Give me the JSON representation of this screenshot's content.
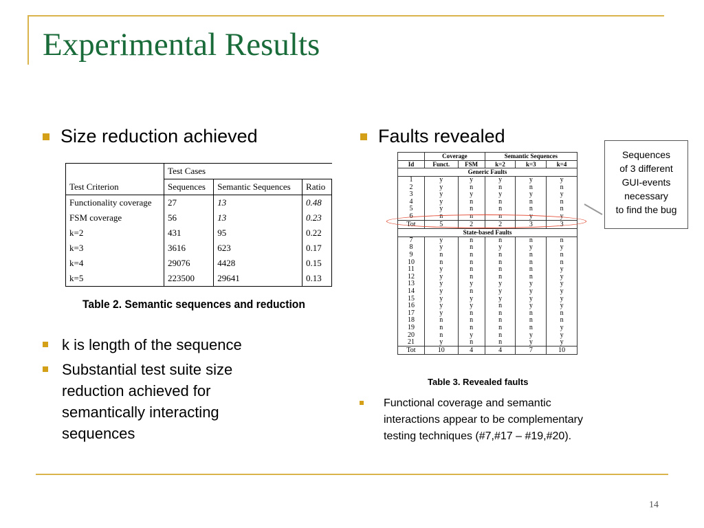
{
  "title": "Experimental Results",
  "left": {
    "heading": "Size reduction achieved",
    "table": {
      "group_header": "Test Cases",
      "columns": [
        "Test Criterion",
        "Sequences",
        "Semantic Sequences",
        "Ratio"
      ],
      "rows": [
        [
          "Functionality coverage",
          "27",
          "13",
          "0.48"
        ],
        [
          "FSM coverage",
          "56",
          "13",
          "0.23"
        ],
        [
          "k=2",
          "431",
          "95",
          "0.22"
        ],
        [
          "k=3",
          "3616",
          "623",
          "0.17"
        ],
        [
          "k=4",
          "29076",
          "4428",
          "0.15"
        ],
        [
          "k=5",
          "223500",
          "29641",
          "0.13"
        ]
      ],
      "caption": "Table 2. Semantic sequences and reduction"
    },
    "bullets": [
      "k is length of the sequence",
      "Substantial test suite size reduction achieved for semantically interacting sequences"
    ]
  },
  "right": {
    "heading": "Faults revealed",
    "table": {
      "group_coverage": "Coverage",
      "group_semantic": "Semantic Sequences",
      "columns": [
        "Id",
        "Funct.",
        "FSM",
        "k=2",
        "k=3",
        "k=4"
      ],
      "generic_label": "Generic Faults",
      "generic_rows": [
        [
          "1",
          "y",
          "y",
          "y",
          "y",
          "y"
        ],
        [
          "2",
          "y",
          "n",
          "n",
          "n",
          "n"
        ],
        [
          "3",
          "y",
          "y",
          "y",
          "y",
          "y"
        ],
        [
          "4",
          "y",
          "n",
          "n",
          "n",
          "n"
        ],
        [
          "5",
          "y",
          "n",
          "n",
          "n",
          "n"
        ],
        [
          "6",
          "n",
          "n",
          "n",
          "y",
          "y"
        ]
      ],
      "generic_total": [
        "Tot",
        "5",
        "2",
        "2",
        "3",
        "3"
      ],
      "state_label": "State-based Faults",
      "state_rows": [
        [
          "7",
          "y",
          "n",
          "n",
          "n",
          "n"
        ],
        [
          "8",
          "y",
          "n",
          "y",
          "y",
          "y"
        ],
        [
          "9",
          "n",
          "n",
          "n",
          "n",
          "n"
        ],
        [
          "10",
          "n",
          "n",
          "n",
          "n",
          "n"
        ],
        [
          "11",
          "y",
          "n",
          "n",
          "n",
          "y"
        ],
        [
          "12",
          "y",
          "n",
          "n",
          "n",
          "y"
        ],
        [
          "13",
          "y",
          "y",
          "y",
          "y",
          "y"
        ],
        [
          "14",
          "y",
          "n",
          "y",
          "y",
          "y"
        ],
        [
          "15",
          "y",
          "y",
          "y",
          "y",
          "y"
        ],
        [
          "16",
          "y",
          "y",
          "n",
          "y",
          "y"
        ],
        [
          "17",
          "y",
          "n",
          "n",
          "n",
          "n"
        ],
        [
          "18",
          "n",
          "n",
          "n",
          "n",
          "n"
        ],
        [
          "19",
          "n",
          "n",
          "n",
          "n",
          "y"
        ],
        [
          "20",
          "n",
          "y",
          "n",
          "y",
          "y"
        ],
        [
          "21",
          "y",
          "n",
          "n",
          "y",
          "y"
        ]
      ],
      "state_total": [
        "Tot",
        "10",
        "4",
        "4",
        "7",
        "10"
      ],
      "caption": "Table 3. Revealed faults"
    },
    "callout": [
      "Sequences",
      "of 3 different",
      "GUI-events",
      "necessary",
      "to find the bug"
    ],
    "note": "Functional coverage and semantic interactions appear to be complementary testing techniques (#7,#17 – #19,#20)."
  },
  "page_number": "14",
  "colors": {
    "title": "#1a6b3a",
    "accent": "#d4a017",
    "rule": "#d8b44a",
    "highlight": "#e04028"
  }
}
